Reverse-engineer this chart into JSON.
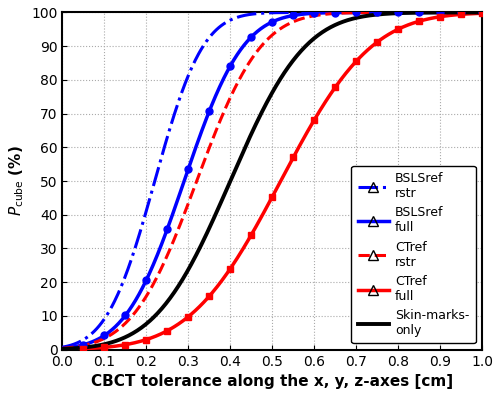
{
  "title": "",
  "xlabel": "CBCT tolerance along the x, y, z-axes [cm]",
  "ylabel": "$P_{\\mathrm{cube}}$ (%)",
  "xlim": [
    0,
    1.0
  ],
  "ylim": [
    0,
    100
  ],
  "xticks": [
    0,
    0.1,
    0.2,
    0.3,
    0.4,
    0.5,
    0.6,
    0.7,
    0.8,
    0.9,
    1.0
  ],
  "yticks": [
    0,
    10,
    20,
    30,
    40,
    50,
    60,
    70,
    80,
    90,
    100
  ],
  "lines": [
    {
      "label_line1": "BSLSref",
      "label_line2": "rstr",
      "color": "#0000ff",
      "linestyle": "dashdot",
      "linewidth": 2.2,
      "marker": "^",
      "markersize": 0,
      "mu": 0.22,
      "sigma": 0.09
    },
    {
      "label_line1": "BSLSref",
      "label_line2": "full",
      "color": "#0000ff",
      "linestyle": "solid",
      "linewidth": 2.5,
      "marker": "o",
      "markersize": 5,
      "markerfacecolor": "#0000ff",
      "mu": 0.29,
      "sigma": 0.11
    },
    {
      "label_line1": "CTref",
      "label_line2": "rstr",
      "color": "#ff0000",
      "linestyle": "dashed",
      "linewidth": 2.2,
      "marker": "^",
      "markersize": 0,
      "mu": 0.32,
      "sigma": 0.12
    },
    {
      "label_line1": "CTref",
      "label_line2": "full",
      "color": "#ff0000",
      "linestyle": "solid",
      "linewidth": 2.5,
      "marker": "s",
      "markersize": 4,
      "markerfacecolor": "#ff0000",
      "mu": 0.52,
      "sigma": 0.17
    },
    {
      "label_line1": "Skin-marks-",
      "label_line2": "only",
      "color": "#000000",
      "linestyle": "solid",
      "linewidth": 2.8,
      "marker": "None",
      "markersize": 0,
      "mu": 0.4,
      "sigma": 0.14
    }
  ],
  "legend_fontsize": 9,
  "axis_fontsize": 11,
  "tick_fontsize": 10,
  "background_color": "#ffffff",
  "grid_color": "#aaaaaa",
  "grid_linestyle": "dotted"
}
